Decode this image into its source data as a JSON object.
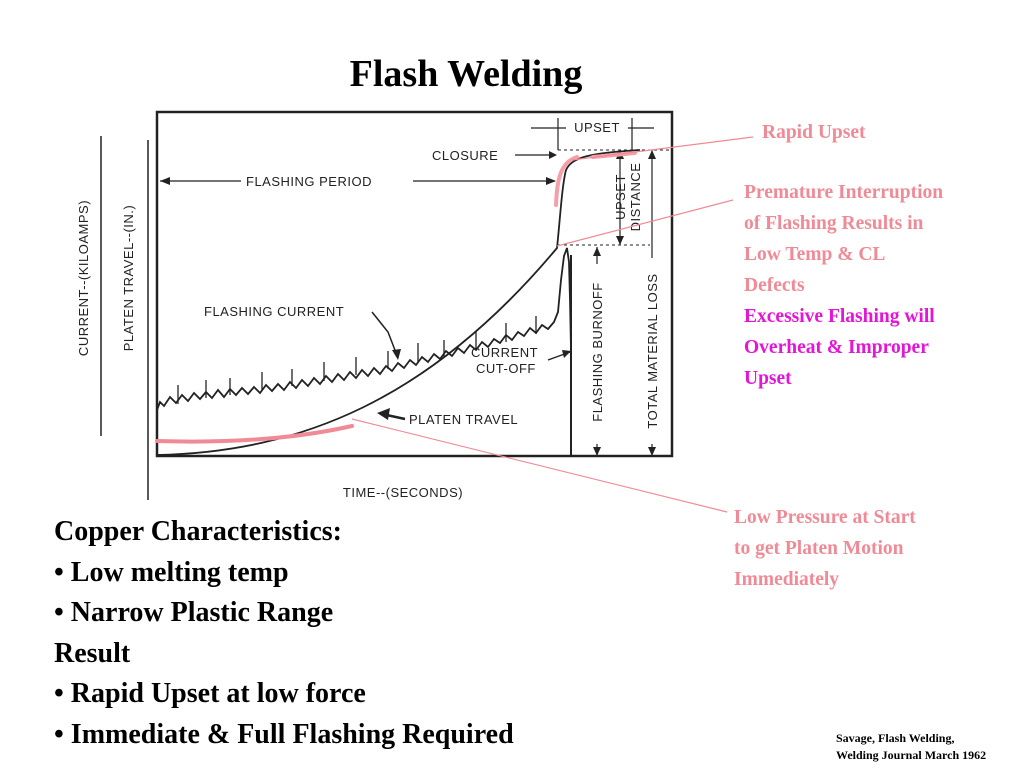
{
  "title": "Flash Welding",
  "diagram": {
    "y_label_current": "CURRENT--(KILOAMPS)",
    "y_label_travel": "PLATEN TRAVEL--(IN.)",
    "x_label": "TIME--(SECONDS)",
    "upset": "UPSET",
    "closure": "CLOSURE",
    "flashing_period": "FLASHING PERIOD",
    "flashing_current": "FLASHING CURRENT",
    "current_cutoff_1": "CURRENT",
    "current_cutoff_2": "CUT-OFF",
    "platen_travel": "PLATEN TRAVEL",
    "upset_distance_1": "UPSET",
    "upset_distance_2": "DISTANCE",
    "flashing_burnoff": "FLASHING BURNOFF",
    "total_material_loss": "TOTAL MATERIAL LOSS"
  },
  "annotations": {
    "rapid_upset": "Rapid Upset",
    "premature": [
      "Premature Interruption",
      "of Flashing Results in",
      "Low Temp & CL",
      "Defects"
    ],
    "excessive": [
      "Excessive Flashing will",
      "Overheat & Improper",
      "Upset"
    ],
    "low_pressure": [
      "Low Pressure at Start",
      "to get Platen Motion",
      "Immediately"
    ]
  },
  "characteristics": {
    "heading": "Copper Characteristics:",
    "items": [
      "• Low melting temp",
      "• Narrow Plastic Range"
    ],
    "result_heading": "Result",
    "result_items": [
      "• Rapid Upset at low force",
      "• Immediate & Full Flashing Required"
    ]
  },
  "citation": [
    "Savage, Flash Welding,",
    "Welding Journal March 1962"
  ],
  "colors": {
    "pink": "#f08a96",
    "magenta": "#e414d8",
    "line": "#222222"
  }
}
